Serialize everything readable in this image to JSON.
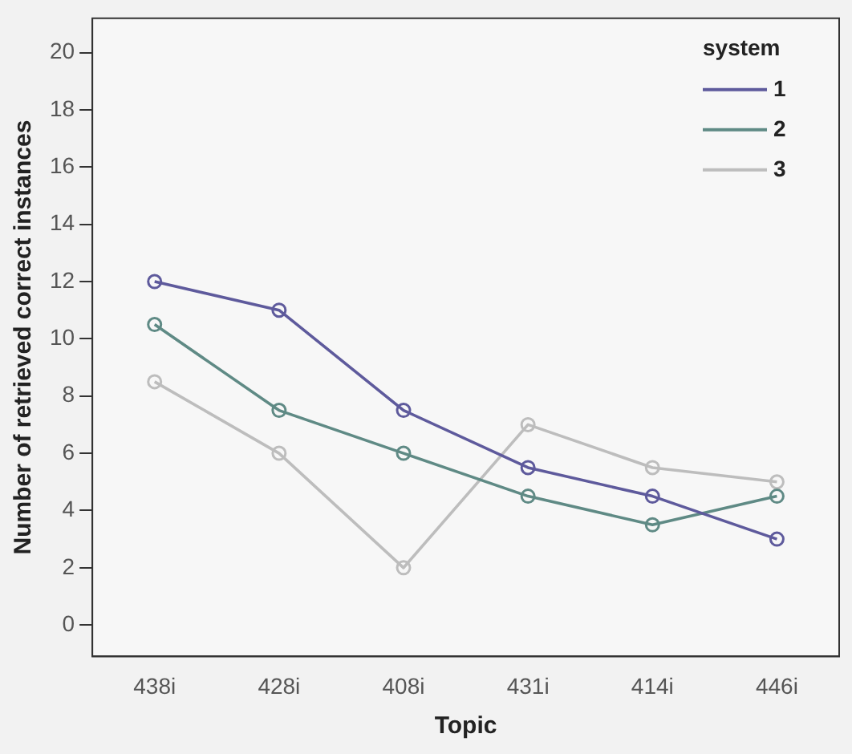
{
  "chart_data": {
    "type": "line",
    "xlabel": "Topic",
    "ylabel": "Number of retrieved correct instances",
    "legend_title": "system",
    "categories": [
      "438i",
      "428i",
      "408i",
      "431i",
      "414i",
      "446i"
    ],
    "series": [
      {
        "name": "1",
        "color": "#5e5a9c",
        "values": [
          12,
          11,
          7.5,
          5.5,
          4.5,
          3
        ]
      },
      {
        "name": "2",
        "color": "#5f8a85",
        "values": [
          10.5,
          7.5,
          6,
          4.5,
          3.5,
          4.5
        ]
      },
      {
        "name": "3",
        "color": "#bdbdbd",
        "values": [
          8.5,
          6,
          2,
          7,
          5.5,
          5
        ]
      }
    ],
    "ylim": [
      -1.1,
      21.2
    ],
    "yticks": [
      0,
      2,
      4,
      6,
      8,
      10,
      12,
      14,
      16,
      18,
      20
    ],
    "grid": false,
    "legend": "top right",
    "marker": "circle",
    "line_style": "solid"
  }
}
